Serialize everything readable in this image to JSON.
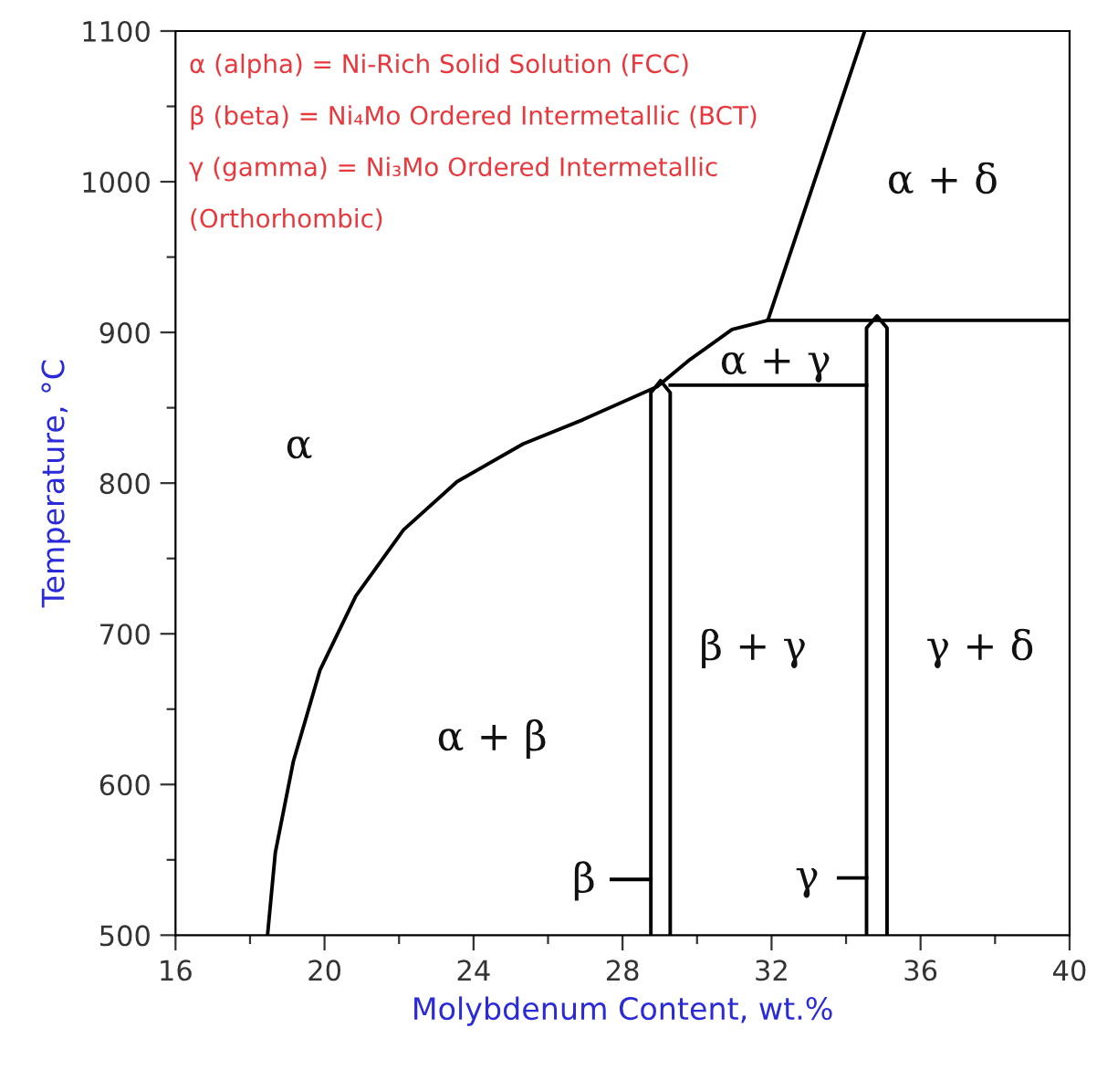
{
  "chart_data": {
    "type": "line",
    "xlabel": "Molybdenum Content, wt.%",
    "ylabel": "Temperature, °C",
    "xlim": [
      16,
      40
    ],
    "ylim": [
      500,
      1100
    ],
    "xticks": [
      16,
      {
        "value": 18,
        "label": null
      },
      20,
      {
        "value": 22,
        "label": null
      },
      24,
      {
        "value": 26,
        "label": null
      },
      28,
      {
        "value": 30,
        "label": null
      },
      32,
      {
        "value": 34,
        "label": null
      },
      36,
      {
        "value": 38,
        "label": null
      },
      40
    ],
    "yticks": [
      500,
      {
        "value": 550,
        "label": null
      },
      600,
      {
        "value": 650,
        "label": null
      },
      700,
      {
        "value": 750,
        "label": null
      },
      800,
      {
        "value": 850,
        "label": null
      },
      900,
      {
        "value": 950,
        "label": null
      },
      1000,
      {
        "value": 1050,
        "label": null
      },
      1100
    ],
    "grid": false,
    "legend": false,
    "marker": "none",
    "line_style": "solid",
    "series": [
      {
        "color": "#000000",
        "x": [
          18.47,
          18.68,
          19.16,
          19.88,
          20.84,
          22.12,
          23.56,
          25.33,
          26.93,
          28.93,
          29.81,
          30.94,
          31.9,
          34.5
        ],
        "values": [
          500,
          555,
          615,
          676,
          725,
          769,
          801,
          826,
          842,
          864,
          882,
          902,
          908,
          1100
        ]
      },
      {
        "color": "#000000",
        "x": [
          31.9,
          40
        ],
        "values": [
          908,
          908
        ]
      },
      {
        "color": "#000000",
        "x": [
          29.28,
          34.55
        ],
        "values": [
          865,
          865
        ]
      },
      {
        "color": "#000000",
        "x": [
          28.76,
          28.76,
          29.02,
          29.28,
          29.28
        ],
        "values": [
          500,
          860,
          868,
          860,
          500
        ]
      },
      {
        "color": "#000000",
        "x": [
          34.55,
          34.55,
          34.83,
          35.1,
          35.1
        ],
        "values": [
          500,
          903,
          911,
          903,
          500
        ]
      },
      {
        "color": "#000000",
        "x": [
          27.7,
          28.76
        ],
        "values": [
          537,
          537
        ]
      },
      {
        "color": "#000000",
        "x": [
          33.8,
          34.55
        ],
        "values": [
          538,
          538
        ]
      }
    ],
    "annotations": [
      "α (alpha) = Ni-Rich Solid Solution (FCC)",
      "β (beta) = Ni₄Mo Ordered Intermetallic (BCT)",
      "γ (gamma) = Ni₃Mo Ordered Intermetallic",
      "(Orthorhombic)",
      "α",
      "α + β",
      "β + γ",
      "γ + δ",
      "α + δ",
      "α + γ",
      "β",
      "γ"
    ]
  }
}
